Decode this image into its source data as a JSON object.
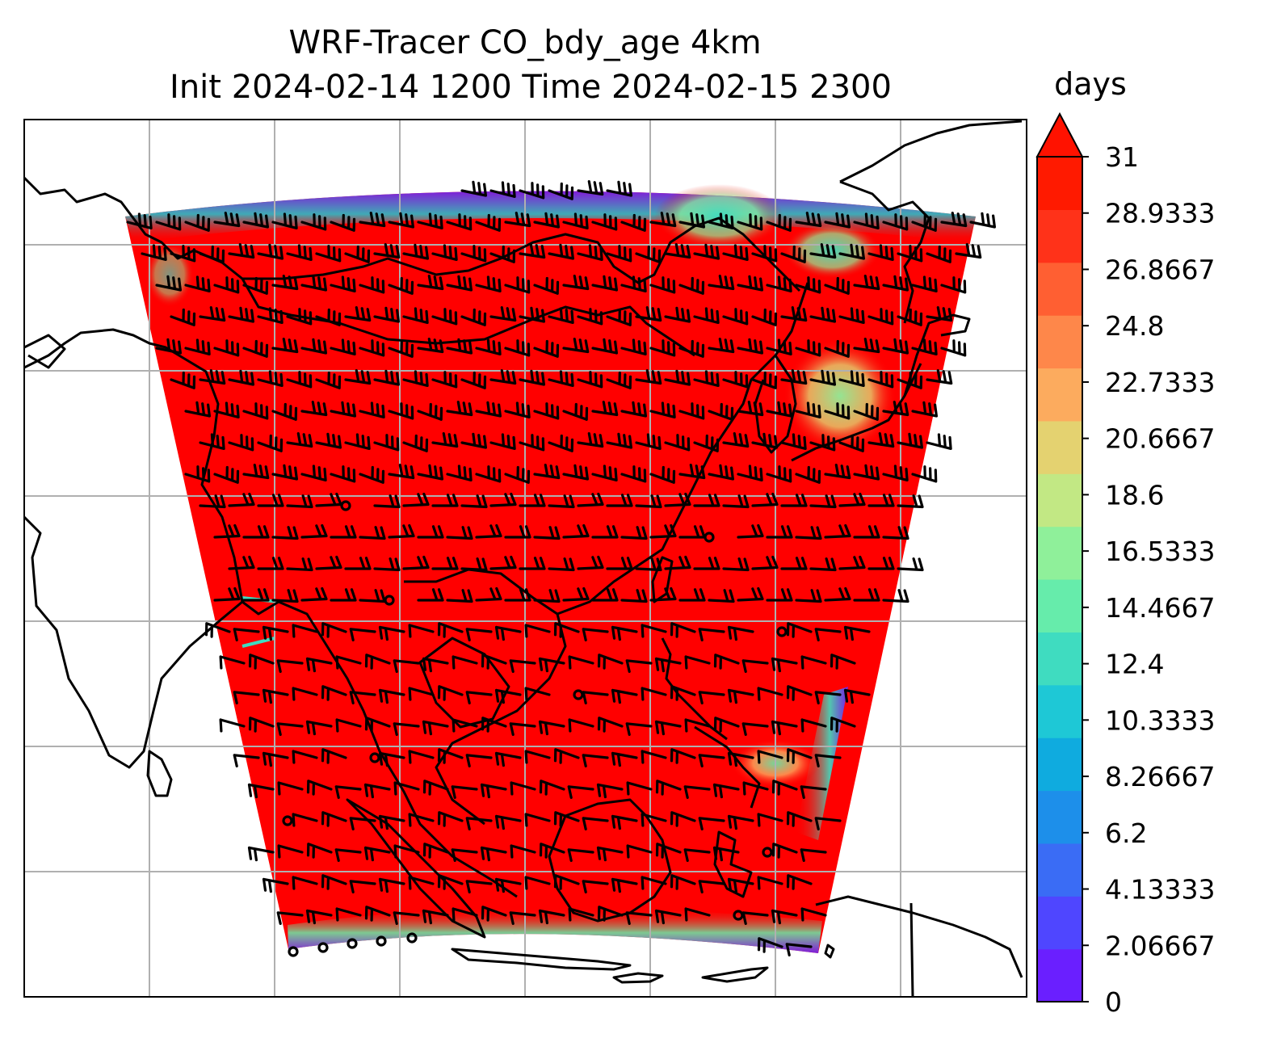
{
  "title_line1": "WRF-Tracer CO_bdy_age 4km",
  "title_line2": "Init 2024-02-14 1200 Time 2024-02-15 2300",
  "field": "CO_bdy_age",
  "resolution": "4km",
  "init_time": "2024-02-14 1200",
  "valid_time": "2024-02-15 2300",
  "colorbar": {
    "units": "days",
    "min": 0,
    "max": 31,
    "extend": "max",
    "tick_labels": [
      "0",
      "2.06667",
      "4.13333",
      "6.2",
      "8.26667",
      "10.3333",
      "12.4",
      "14.4667",
      "16.5333",
      "18.6",
      "20.6667",
      "22.7333",
      "24.8",
      "26.8667",
      "28.9333",
      "31"
    ],
    "colors": [
      "#6a1fff",
      "#4f46ff",
      "#3a6cf5",
      "#1d8fea",
      "#0fabdf",
      "#1ec8d6",
      "#3fdcc0",
      "#66ecab",
      "#8ff09a",
      "#c2e884",
      "#e4d270",
      "#fcab5e",
      "#fe874a",
      "#ff5f32",
      "#ff3219",
      "#ff1a00"
    ],
    "extend_color": "#ff1200"
  },
  "map": {
    "background_color": "#ffffff",
    "tracer_fill_color": "#ff0000",
    "gridline_color": "#b0b0b0",
    "coastline_color": "#000000",
    "overlays": [
      "coastlines",
      "country-borders",
      "lat-lon-gridlines",
      "wind-barbs"
    ],
    "low_age_regions": [
      "northern edge",
      "northeast (East China Sea / Korea)",
      "east edge (Philippines)",
      "southern edge (Java)",
      "northwest edge (Himalaya)"
    ]
  }
}
